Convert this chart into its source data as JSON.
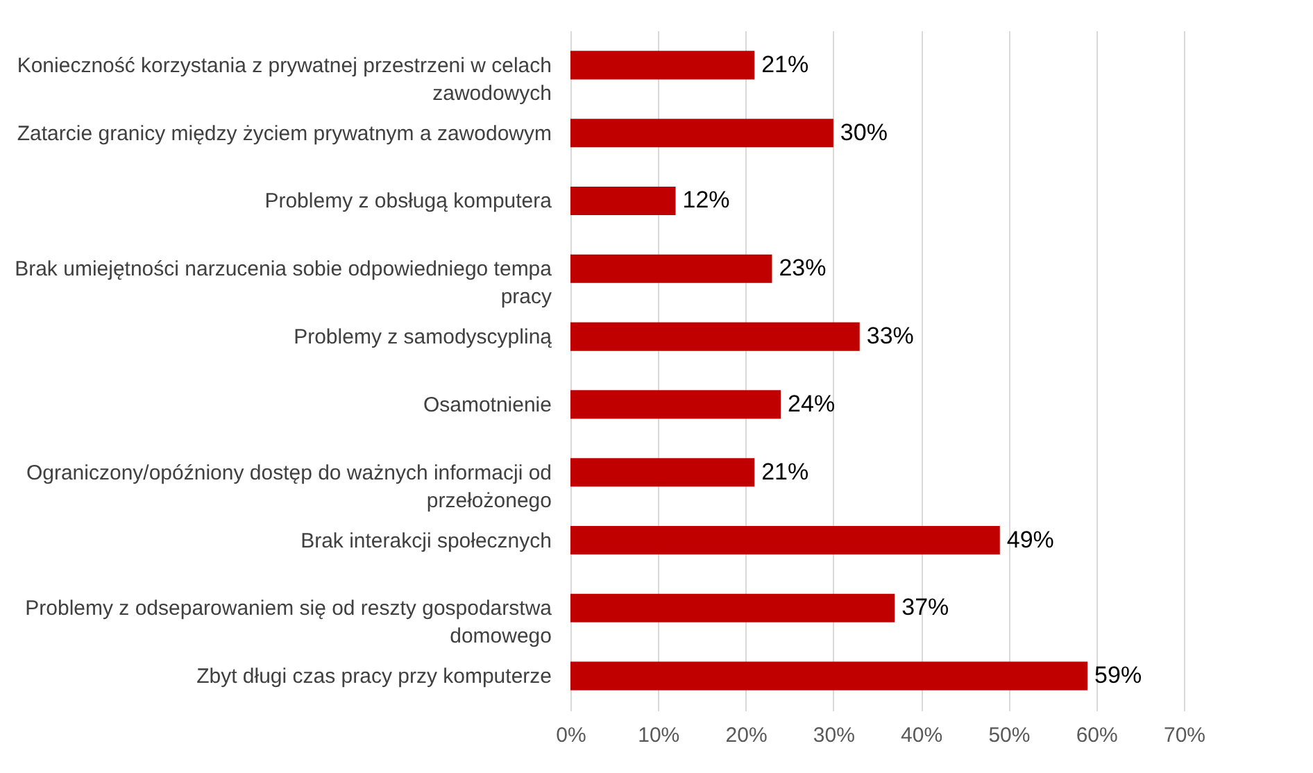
{
  "chart_data": {
    "type": "bar",
    "orientation": "horizontal",
    "categories": [
      "Konieczność korzystania z prywatnej przestrzeni w celach zawodowych",
      "Zatarcie granicy między życiem prywatnym a zawodowym",
      "Problemy z obsługą komputera",
      "Brak umiejętności narzucenia sobie odpowiedniego tempa pracy",
      "Problemy z samodyscypliną",
      "Osamotnienie",
      "Ograniczony/opóźniony dostęp do ważnych informacji od przełożonego",
      "Brak interakcji społecznych",
      "Problemy z odseparowaniem się od reszty gospodarstwa domowego",
      "Zbyt długi czas pracy przy komputerze"
    ],
    "values": [
      21,
      30,
      12,
      23,
      33,
      24,
      21,
      49,
      37,
      59
    ],
    "value_labels": [
      "21%",
      "30%",
      "12%",
      "23%",
      "33%",
      "24%",
      "21%",
      "49%",
      "37%",
      "59%"
    ],
    "color": "#c00000",
    "xlim": [
      0,
      70
    ],
    "xticks": [
      {
        "value": 0,
        "label": "0%"
      },
      {
        "value": 10,
        "label": "10%"
      },
      {
        "value": 20,
        "label": "20%"
      },
      {
        "value": 30,
        "label": "30%"
      },
      {
        "value": 40,
        "label": "40%"
      },
      {
        "value": 50,
        "label": "50%"
      },
      {
        "value": 60,
        "label": "60%"
      },
      {
        "value": 70,
        "label": "70%"
      }
    ],
    "grid": "x"
  }
}
